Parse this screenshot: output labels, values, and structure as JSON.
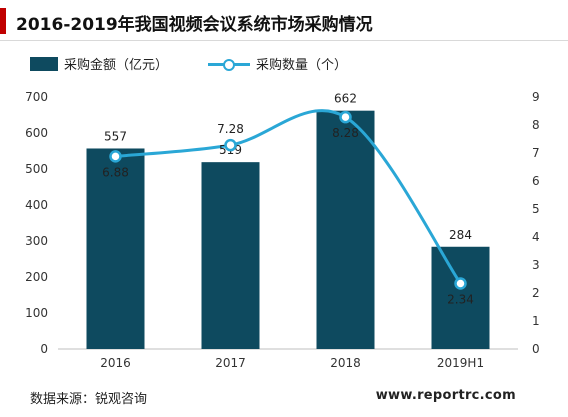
{
  "title": "2016-2019年我国视频会议系统市场采购情况",
  "source": "数据来源：锐观咨询",
  "website": "www.reportrc.com",
  "colors": {
    "bar": "#0e4a5f",
    "line": "#2aa7d6",
    "accent": "#c00000"
  },
  "chart_data": {
    "type": "bar",
    "categories": [
      "2016",
      "2017",
      "2018",
      "2019H1"
    ],
    "series": [
      {
        "name": "采购金额（亿元）",
        "type": "bar",
        "axis": "left",
        "values": [
          557,
          519,
          662,
          284
        ],
        "labels": [
          "557",
          "519",
          "662",
          "284"
        ]
      },
      {
        "name": "采购数量（个）",
        "type": "line",
        "axis": "right",
        "values": [
          6.88,
          7.28,
          8.28,
          2.34
        ],
        "labels": [
          "6.88",
          "7.28",
          "8.28",
          "2.34"
        ]
      }
    ],
    "y_left": {
      "ylim": [
        0,
        700
      ],
      "ticks": [
        "0",
        "100",
        "200",
        "300",
        "400",
        "500",
        "600",
        "700"
      ]
    },
    "y_right": {
      "ylim": [
        0,
        9
      ],
      "ticks": [
        "0",
        "1",
        "2",
        "3",
        "4",
        "5",
        "6",
        "7",
        "8",
        "9"
      ]
    },
    "legend": "top-left",
    "grid": false
  }
}
